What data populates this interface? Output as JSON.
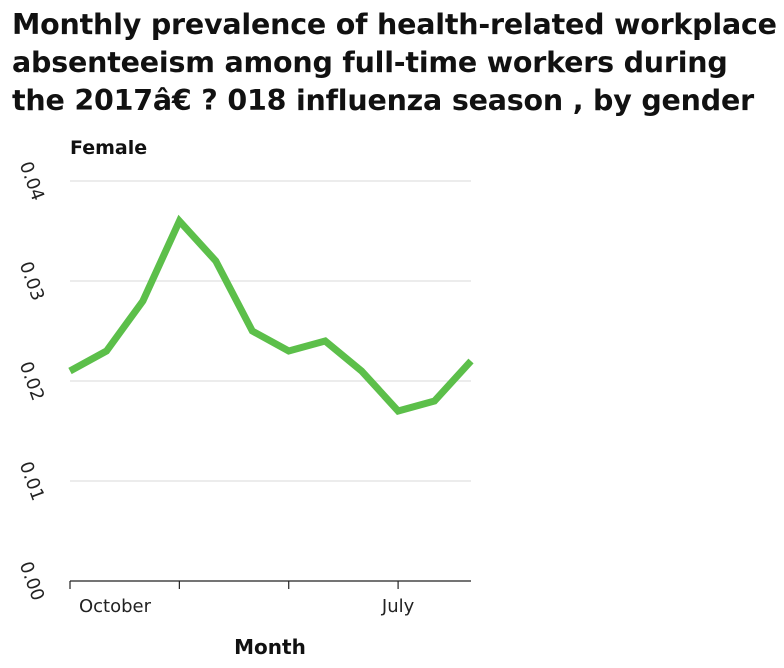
{
  "chart_data": {
    "type": "line",
    "title": "Monthly prevalence of health-related workplace absenteeism among full-time workers during the 2017â€ ? 018 influenza season , by gender",
    "xlabel": "Month",
    "ylabel": "",
    "ylim": [
      0,
      0.04
    ],
    "yticks": [
      "0.00",
      "0.01",
      "0.02",
      "0.03",
      "0.04"
    ],
    "x": [
      "October",
      "",
      "",
      "",
      "",
      "",
      "",
      "",
      "",
      "July",
      "",
      ""
    ],
    "xtick_labels": [
      {
        "index": 0,
        "label": "October"
      },
      {
        "index": 3,
        "label": ""
      },
      {
        "index": 6,
        "label": ""
      },
      {
        "index": 9,
        "label": "July"
      }
    ],
    "grid": true,
    "series": [
      {
        "name": "Female",
        "color": "#5cbf4a",
        "values": [
          0.021,
          0.023,
          0.028,
          0.036,
          0.032,
          0.025,
          0.023,
          0.024,
          0.021,
          0.017,
          0.018,
          0.022
        ]
      }
    ]
  }
}
